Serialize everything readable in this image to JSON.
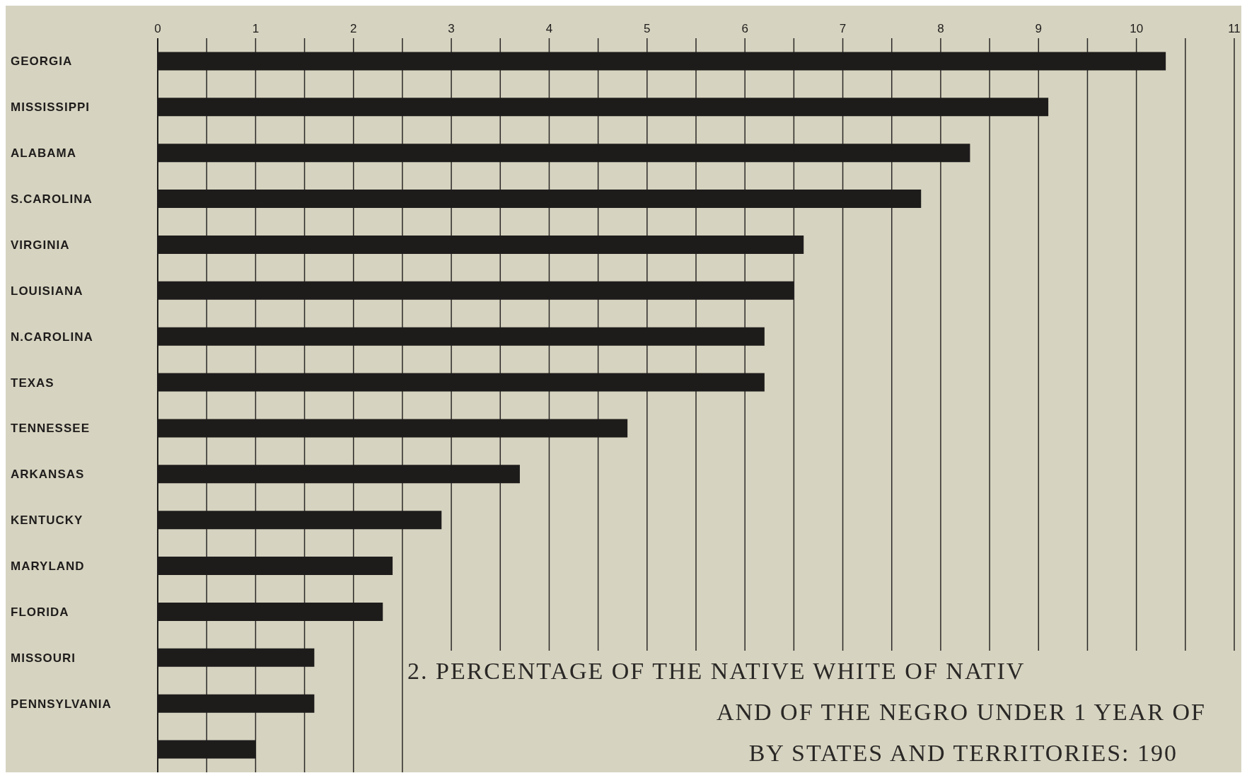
{
  "chart_data": {
    "type": "bar",
    "orientation": "horizontal",
    "categories": [
      "GEORGIA",
      "MISSISSIPPI",
      "ALABAMA",
      "S.CAROLINA",
      "VIRGINIA",
      "LOUISIANA",
      "N.CAROLINA",
      "TEXAS",
      "TENNESSEE",
      "ARKANSAS",
      "KENTUCKY",
      "MARYLAND",
      "FLORIDA",
      "MISSOURI",
      "PENNSYLVANIA",
      null
    ],
    "values": [
      10.3,
      9.1,
      8.3,
      7.8,
      6.6,
      6.5,
      6.2,
      6.2,
      4.8,
      3.7,
      2.9,
      2.4,
      2.3,
      1.6,
      1.6,
      1.0
    ],
    "color": "#1e1c1b",
    "xlim": [
      0,
      11
    ],
    "xticks": [
      0,
      {
        "value": 0.5,
        "label": null
      },
      1,
      {
        "value": 1.5,
        "label": null
      },
      2,
      {
        "value": 2.5,
        "label": null
      },
      3,
      {
        "value": 3.5,
        "label": null
      },
      4,
      {
        "value": 4.5,
        "label": null
      },
      5,
      {
        "value": 5.5,
        "label": null
      },
      6,
      {
        "value": 6.5,
        "label": null
      },
      7,
      {
        "value": 7.5,
        "label": null
      },
      8,
      {
        "value": 8.5,
        "label": null
      },
      9,
      {
        "value": 9.5,
        "label": null
      },
      10,
      {
        "value": 10.5,
        "label": null
      },
      11
    ],
    "grid": "x",
    "annotations": [
      "2. PERCENTAGE OF THE NATIVE WHITE OF NATIV",
      "AND OF THE NEGRO UNDER 1 YEAR OF",
      "BY STATES AND TERRITORIES: 190"
    ]
  }
}
